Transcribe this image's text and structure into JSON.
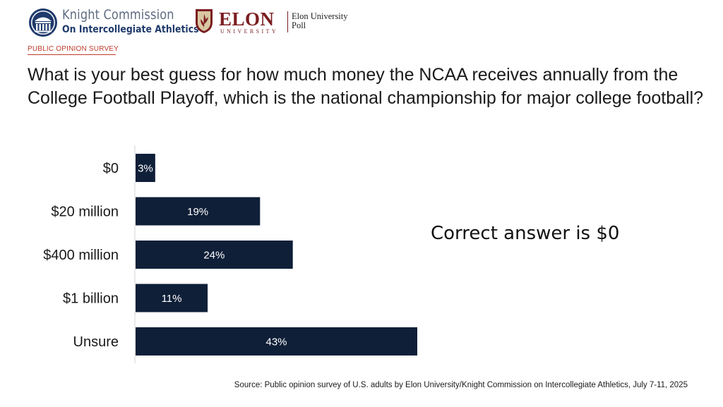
{
  "logos": {
    "knight_line1": "Knight Commission",
    "knight_line2": "On Intercollegiate Athletics",
    "elon_word": "ELON",
    "elon_university": "UNIVERSITY",
    "elon_poll_line1": "Elon University",
    "elon_poll_line2": "Poll"
  },
  "header": {
    "kicker": "PUBLIC OPINION SURVEY",
    "question": "What is your best guess for how much money the NCAA receives annually from the College Football Playoff, which is the national championship for major college football?"
  },
  "callout": "Correct answer is $0",
  "source": "Source: Public opinion survey of U.S. adults by Elon University/Knight Commission on Intercollegiate Athletics, July 7-11, 2025",
  "colors": {
    "bar": "#0f1f38",
    "kicker": "#c0392b",
    "elon": "#7b1d21",
    "knight_blue": "#1f3a6b"
  },
  "chart_data": {
    "type": "bar",
    "orientation": "horizontal",
    "categories": [
      "$0",
      "$20 million",
      "$400 million",
      "$1 billion",
      "Unsure"
    ],
    "values": [
      3,
      19,
      24,
      11,
      43
    ],
    "value_labels": [
      "3%",
      "19%",
      "24%",
      "11%",
      "43%"
    ],
    "xlim": [
      0,
      43
    ],
    "grid": false,
    "legend": "none"
  }
}
